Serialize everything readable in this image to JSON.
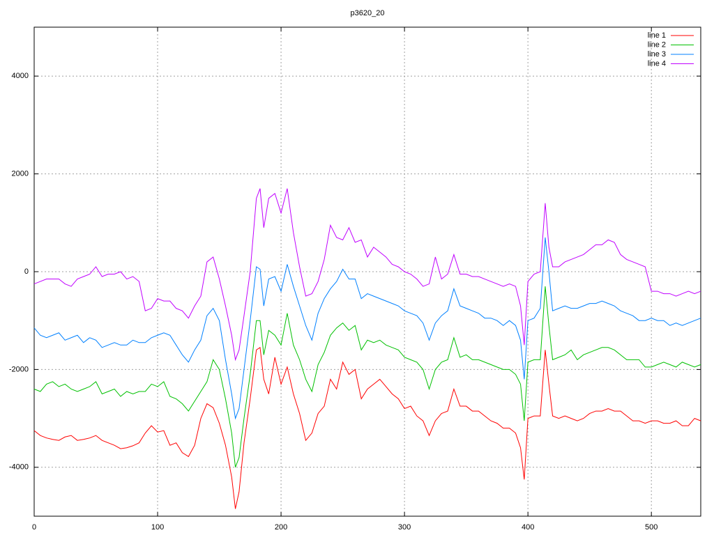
{
  "chart_data": {
    "type": "line",
    "title": "p3620_20",
    "x": [
      0,
      5,
      10,
      15,
      20,
      25,
      30,
      35,
      40,
      45,
      50,
      55,
      60,
      65,
      70,
      75,
      80,
      85,
      90,
      95,
      100,
      105,
      110,
      115,
      120,
      125,
      130,
      135,
      140,
      145,
      150,
      155,
      160,
      163,
      166,
      170,
      175,
      180,
      183,
      186,
      190,
      195,
      200,
      205,
      210,
      215,
      220,
      225,
      230,
      235,
      240,
      245,
      250,
      255,
      260,
      265,
      270,
      275,
      280,
      285,
      290,
      295,
      300,
      305,
      310,
      315,
      320,
      325,
      330,
      335,
      340,
      345,
      350,
      355,
      360,
      365,
      370,
      375,
      380,
      385,
      390,
      394,
      397,
      400,
      405,
      410,
      414,
      417,
      420,
      425,
      430,
      435,
      440,
      445,
      450,
      455,
      460,
      465,
      470,
      475,
      480,
      485,
      490,
      495,
      500,
      505,
      510,
      515,
      520,
      525,
      530,
      535,
      540
    ],
    "series": [
      {
        "name": "line 1",
        "color": "#ff0000",
        "values": [
          -3250,
          -3350,
          -3400,
          -3430,
          -3450,
          -3380,
          -3350,
          -3450,
          -3430,
          -3400,
          -3350,
          -3450,
          -3500,
          -3550,
          -3620,
          -3600,
          -3560,
          -3500,
          -3300,
          -3150,
          -3280,
          -3250,
          -3550,
          -3500,
          -3700,
          -3780,
          -3550,
          -3000,
          -2700,
          -2780,
          -3100,
          -3550,
          -4200,
          -4850,
          -4500,
          -3500,
          -2600,
          -1600,
          -1550,
          -2200,
          -2500,
          -1750,
          -2300,
          -1950,
          -2500,
          -2900,
          -3450,
          -3300,
          -2900,
          -2750,
          -2200,
          -2400,
          -1850,
          -2100,
          -2000,
          -2600,
          -2400,
          -2300,
          -2200,
          -2350,
          -2500,
          -2600,
          -2800,
          -2750,
          -2950,
          -3050,
          -3350,
          -3050,
          -2900,
          -2850,
          -2400,
          -2750,
          -2750,
          -2850,
          -2850,
          -2950,
          -3050,
          -3100,
          -3200,
          -3200,
          -3300,
          -3600,
          -4250,
          -3000,
          -2950,
          -2950,
          -1600,
          -2300,
          -2950,
          -3000,
          -2950,
          -3000,
          -3050,
          -3000,
          -2900,
          -2850,
          -2850,
          -2800,
          -2850,
          -2850,
          -2950,
          -3050,
          -3050,
          -3100,
          -3050,
          -3050,
          -3100,
          -3100,
          -3050,
          -3150,
          -3150,
          -3000,
          -3050
        ]
      },
      {
        "name": "line 2",
        "color": "#00c000",
        "values": [
          -2400,
          -2450,
          -2300,
          -2250,
          -2350,
          -2300,
          -2400,
          -2450,
          -2400,
          -2350,
          -2250,
          -2500,
          -2450,
          -2400,
          -2550,
          -2450,
          -2500,
          -2450,
          -2450,
          -2300,
          -2350,
          -2250,
          -2550,
          -2600,
          -2700,
          -2850,
          -2650,
          -2450,
          -2250,
          -1800,
          -2000,
          -2600,
          -3300,
          -4000,
          -3800,
          -3000,
          -2100,
          -1000,
          -1000,
          -1700,
          -1200,
          -1300,
          -1500,
          -850,
          -1500,
          -1800,
          -2200,
          -2450,
          -1900,
          -1650,
          -1300,
          -1150,
          -1050,
          -1200,
          -1100,
          -1600,
          -1400,
          -1450,
          -1400,
          -1500,
          -1550,
          -1600,
          -1750,
          -1800,
          -1850,
          -2000,
          -2400,
          -2000,
          -1850,
          -1800,
          -1350,
          -1750,
          -1700,
          -1800,
          -1800,
          -1850,
          -1900,
          -1950,
          -2000,
          -2000,
          -2100,
          -2300,
          -3050,
          -1850,
          -1800,
          -1800,
          -300,
          -1100,
          -1800,
          -1750,
          -1700,
          -1600,
          -1800,
          -1700,
          -1650,
          -1600,
          -1550,
          -1550,
          -1600,
          -1700,
          -1800,
          -1800,
          -1800,
          -1950,
          -1950,
          -1900,
          -1850,
          -1900,
          -1950,
          -1850,
          -1900,
          -1950,
          -1900
        ]
      },
      {
        "name": "line 3",
        "color": "#0080ff",
        "values": [
          -1150,
          -1300,
          -1350,
          -1300,
          -1250,
          -1400,
          -1350,
          -1300,
          -1450,
          -1350,
          -1400,
          -1550,
          -1500,
          -1450,
          -1500,
          -1500,
          -1400,
          -1450,
          -1450,
          -1350,
          -1300,
          -1250,
          -1300,
          -1500,
          -1700,
          -1850,
          -1600,
          -1400,
          -900,
          -750,
          -1000,
          -1800,
          -2500,
          -3000,
          -2800,
          -2000,
          -1000,
          100,
          50,
          -700,
          -150,
          -100,
          -400,
          150,
          -300,
          -700,
          -1100,
          -1400,
          -850,
          -550,
          -350,
          -200,
          50,
          -150,
          -150,
          -550,
          -450,
          -500,
          -550,
          -600,
          -650,
          -700,
          -800,
          -850,
          -900,
          -1050,
          -1400,
          -1050,
          -900,
          -800,
          -350,
          -700,
          -750,
          -800,
          -850,
          -950,
          -950,
          -1000,
          -1100,
          -1000,
          -1100,
          -1400,
          -2200,
          -1000,
          -950,
          -750,
          700,
          0,
          -800,
          -750,
          -700,
          -750,
          -750,
          -700,
          -650,
          -650,
          -600,
          -650,
          -700,
          -800,
          -850,
          -900,
          -1000,
          -1000,
          -950,
          -1000,
          -1000,
          -1100,
          -1050,
          -1100,
          -1050,
          -1000,
          -950
        ]
      },
      {
        "name": "line 4",
        "color": "#c000ff",
        "values": [
          -250,
          -200,
          -150,
          -150,
          -150,
          -250,
          -300,
          -150,
          -100,
          -50,
          100,
          -100,
          -50,
          -50,
          0,
          -150,
          -100,
          -200,
          -800,
          -750,
          -550,
          -600,
          -600,
          -750,
          -800,
          -950,
          -700,
          -500,
          200,
          300,
          -150,
          -700,
          -1300,
          -1800,
          -1600,
          -900,
          0,
          1500,
          1700,
          900,
          1500,
          1600,
          1200,
          1700,
          800,
          100,
          -500,
          -450,
          -200,
          250,
          950,
          700,
          650,
          900,
          600,
          650,
          300,
          500,
          400,
          300,
          150,
          100,
          0,
          -50,
          -150,
          -300,
          -250,
          300,
          -150,
          -50,
          350,
          -50,
          -50,
          -100,
          -100,
          -150,
          -200,
          -250,
          -300,
          -250,
          -300,
          -700,
          -1500,
          -200,
          -50,
          0,
          1400,
          500,
          100,
          100,
          200,
          250,
          300,
          350,
          450,
          550,
          550,
          650,
          600,
          350,
          250,
          200,
          150,
          100,
          -400,
          -400,
          -450,
          -450,
          -500,
          -450,
          -400,
          -450,
          -400
        ]
      }
    ],
    "xlim": [
      0,
      540
    ],
    "ylim": [
      -5000,
      5000
    ],
    "xticks": [
      0,
      100,
      200,
      300,
      400,
      500
    ],
    "yticks": [
      -4000,
      -2000,
      0,
      2000,
      4000
    ],
    "grid": true,
    "legend": "top-right"
  }
}
